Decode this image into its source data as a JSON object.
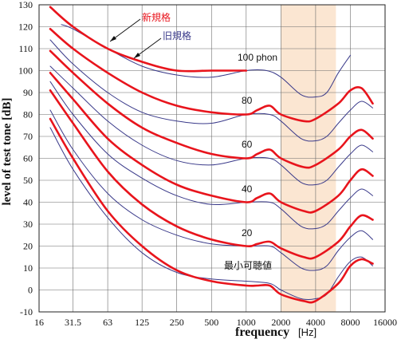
{
  "chart_data": {
    "type": "line",
    "x_scale": "log",
    "xlim": [
      16,
      16000
    ],
    "ylim": [
      -10,
      130
    ],
    "grid": true,
    "x_ticks": [
      "16",
      "31.5",
      "63",
      "125",
      "250",
      "500",
      "1000",
      "2000",
      "4000",
      "8000",
      "16000"
    ],
    "x_tick_values": [
      16,
      31.5,
      63,
      125,
      250,
      500,
      1000,
      2000,
      4000,
      8000,
      16000
    ],
    "y_ticks": [
      "130",
      "120",
      "110",
      "100",
      "90",
      "80",
      "70",
      "60",
      "50",
      "40",
      "30",
      "20",
      "10",
      "0",
      "-10"
    ],
    "y_tick_values": [
      130,
      120,
      110,
      100,
      90,
      80,
      70,
      60,
      50,
      40,
      30,
      20,
      10,
      0,
      -10
    ],
    "xlabel": "frequency",
    "xlabel_unit": "[Hz]",
    "ylabel": "level of test tone  [dB]",
    "highlight_band": [
      2000,
      6000
    ],
    "legend": {
      "new_label": "新規格",
      "old_label": "旧規格",
      "new_color": "#e8141c",
      "old_color": "#3a3a8a"
    },
    "curve_labels": [
      "100 phon",
      "80",
      "60",
      "40",
      "20",
      "最小可聴値"
    ],
    "series": [
      {
        "name": "新規格",
        "group": "new",
        "x": [
          20,
          31.5,
          63,
          125,
          250,
          500,
          1000
        ],
        "y": [
          129,
          120,
          110,
          104,
          100,
          100,
          100
        ]
      },
      {
        "name": "新規格",
        "group": "new",
        "x": [
          20,
          31.5,
          63,
          125,
          250,
          500,
          1000,
          1250,
          1600,
          2000,
          3150,
          4000,
          6300,
          8000,
          10000,
          12500
        ],
        "y": [
          119,
          110,
          99,
          90,
          84,
          81,
          80,
          82,
          84,
          80,
          77,
          78,
          85,
          91,
          92,
          85
        ]
      },
      {
        "name": "新規格",
        "group": "new",
        "x": [
          20,
          31.5,
          63,
          125,
          250,
          500,
          1000,
          1250,
          1600,
          2000,
          3150,
          4000,
          6300,
          8000,
          10000,
          12500
        ],
        "y": [
          109,
          99,
          85,
          74,
          67,
          62,
          60,
          62,
          64,
          60,
          56,
          57,
          64,
          70,
          73,
          69
        ]
      },
      {
        "name": "新規格",
        "group": "new",
        "x": [
          20,
          31.5,
          63,
          125,
          250,
          500,
          1000,
          1250,
          1600,
          2000,
          3150,
          4000,
          6300,
          8000,
          10000,
          12500
        ],
        "y": [
          99,
          87,
          69,
          57,
          48,
          43,
          40,
          42,
          44,
          40,
          36,
          36,
          43,
          50,
          55,
          52
        ]
      },
      {
        "name": "新規格",
        "group": "new",
        "x": [
          20,
          31.5,
          63,
          125,
          250,
          500,
          1000,
          1250,
          1600,
          2000,
          3150,
          4000,
          6300,
          8000,
          10000,
          12500
        ],
        "y": [
          91,
          76,
          54,
          39,
          29,
          23,
          20,
          21,
          22,
          19,
          15,
          15,
          22,
          29,
          34,
          32
        ]
      },
      {
        "name": "新規格",
        "group": "new",
        "x": [
          20,
          31.5,
          63,
          125,
          250,
          500,
          1000,
          1250,
          1600,
          2000,
          3150,
          4000,
          6300,
          8000,
          10000,
          12500
        ],
        "y": [
          78,
          60,
          36,
          20,
          9,
          4,
          2,
          2,
          2,
          -2,
          -5,
          -5,
          3,
          11,
          14,
          12
        ]
      },
      {
        "name": "旧規格",
        "group": "old",
        "x": [
          25,
          31.5,
          63,
          125,
          250,
          500,
          1000,
          1500,
          2000,
          3000,
          4000,
          5000,
          6300,
          8000
        ],
        "y": [
          121,
          119,
          110,
          102,
          98,
          97,
          100,
          100,
          97,
          89,
          88,
          90,
          99,
          107
        ]
      },
      {
        "name": "旧規格",
        "group": "old",
        "x": [
          20,
          31.5,
          63,
          125,
          250,
          500,
          1000,
          1600,
          2000,
          3000,
          4000,
          5000,
          6300,
          8000,
          10000,
          12500
        ],
        "y": [
          114,
          103,
          90,
          81,
          77,
          76,
          80,
          80,
          77,
          69,
          68,
          70,
          76,
          82,
          86,
          83
        ]
      },
      {
        "name": "旧規格",
        "group": "old",
        "x": [
          20,
          31.5,
          63,
          125,
          250,
          500,
          1000,
          1600,
          2000,
          3000,
          4000,
          5000,
          6300,
          8000,
          10000,
          12500
        ],
        "y": [
          102,
          92,
          77,
          66,
          59,
          57,
          60,
          60,
          57,
          49,
          48,
          50,
          56,
          62,
          66,
          63
        ]
      },
      {
        "name": "旧規格",
        "group": "old",
        "x": [
          20,
          31.5,
          63,
          125,
          250,
          500,
          1000,
          1600,
          2000,
          3000,
          4000,
          5000,
          6300,
          8000,
          10000,
          12500
        ],
        "y": [
          95,
          80,
          62,
          51,
          43,
          39,
          40,
          40,
          37,
          29,
          28,
          30,
          36,
          42,
          46,
          43
        ]
      },
      {
        "name": "旧規格",
        "group": "old",
        "x": [
          20,
          31.5,
          63,
          125,
          250,
          500,
          1000,
          1600,
          2000,
          3000,
          4000,
          5000,
          6300,
          8000,
          10000,
          12500
        ],
        "y": [
          82,
          64,
          44,
          32,
          25,
          21,
          20,
          20,
          17,
          10,
          9,
          11,
          18,
          24,
          27,
          23
        ]
      },
      {
        "name": "旧規格",
        "group": "old",
        "x": [
          20,
          31.5,
          63,
          125,
          250,
          500,
          1000,
          1600,
          2000,
          3000,
          4000,
          5000,
          6300,
          8000,
          10000,
          12500
        ],
        "y": [
          74,
          55,
          33,
          17,
          8,
          5,
          4,
          3,
          0,
          -4,
          -4,
          -2,
          6,
          13,
          15,
          11
        ]
      }
    ]
  }
}
